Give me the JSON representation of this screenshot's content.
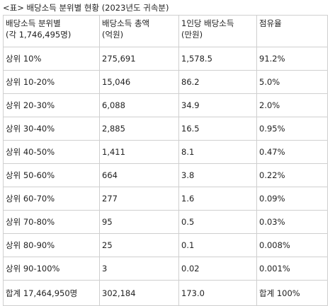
{
  "caption": "<표> 배당소득 분위별 현황 (2023년도 귀속분)",
  "headers": [
    {
      "line1": "배당소득 분위별",
      "line2": "(각 1,746,495명)"
    },
    {
      "line1": "배당소득 총액",
      "line2": "(억원)"
    },
    {
      "line1": "1인당 배당소득",
      "line2": "(만원)"
    },
    {
      "line1": "점유율",
      "line2": ""
    }
  ],
  "rows": [
    [
      "상위 10%",
      "275,691",
      "1,578.5",
      "91.2%"
    ],
    [
      "상위 10-20%",
      "15,046",
      "86.2",
      "5.0%"
    ],
    [
      "상위 20-30%",
      "6,088",
      "34.9",
      "2.0%"
    ],
    [
      "상위 30-40%",
      "2,885",
      "16.5",
      "0.95%"
    ],
    [
      "상위 40-50%",
      "1,411",
      "8.1",
      "0.47%"
    ],
    [
      "상위 50-60%",
      "664",
      "3.8",
      "0.22%"
    ],
    [
      "상위 60-70%",
      "277",
      "1.6",
      "0.09%"
    ],
    [
      "상위 70-80%",
      "95",
      "0.5",
      "0.03%"
    ],
    [
      "상위 80-90%",
      "25",
      "0.1",
      "0.008%"
    ],
    [
      "상위 90-100%",
      "3",
      "0.02",
      "0.001%"
    ],
    [
      "합계 17,464,950명",
      "302,184",
      "173.0",
      "합계 100%"
    ]
  ]
}
